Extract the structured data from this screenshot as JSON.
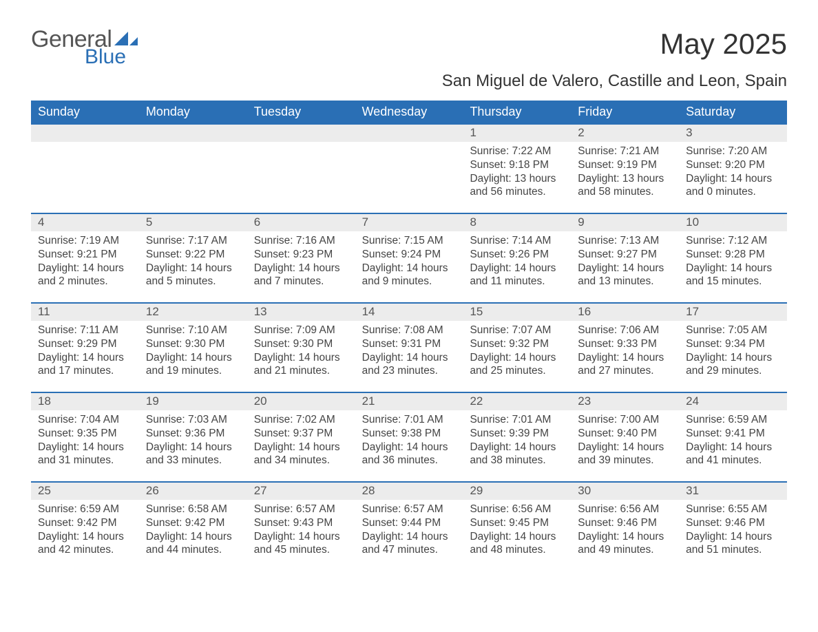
{
  "logo": {
    "text1": "General",
    "text2": "Blue"
  },
  "title": "May 2025",
  "subtitle": "San Miguel de Valero, Castille and Leon, Spain",
  "colors": {
    "header_bg": "#2a6fb5",
    "header_text": "#ffffff",
    "daynum_bg": "#ececec",
    "week_divider": "#2a6fb5",
    "body_text": "#444444",
    "page_bg": "#ffffff"
  },
  "weekdays": [
    "Sunday",
    "Monday",
    "Tuesday",
    "Wednesday",
    "Thursday",
    "Friday",
    "Saturday"
  ],
  "labels": {
    "sunrise": "Sunrise: ",
    "sunset": "Sunset: ",
    "daylight": "Daylight: "
  },
  "weeks": [
    [
      null,
      null,
      null,
      null,
      {
        "n": "1",
        "sunrise": "7:22 AM",
        "sunset": "9:18 PM",
        "daylight": "13 hours and 56 minutes."
      },
      {
        "n": "2",
        "sunrise": "7:21 AM",
        "sunset": "9:19 PM",
        "daylight": "13 hours and 58 minutes."
      },
      {
        "n": "3",
        "sunrise": "7:20 AM",
        "sunset": "9:20 PM",
        "daylight": "14 hours and 0 minutes."
      }
    ],
    [
      {
        "n": "4",
        "sunrise": "7:19 AM",
        "sunset": "9:21 PM",
        "daylight": "14 hours and 2 minutes."
      },
      {
        "n": "5",
        "sunrise": "7:17 AM",
        "sunset": "9:22 PM",
        "daylight": "14 hours and 5 minutes."
      },
      {
        "n": "6",
        "sunrise": "7:16 AM",
        "sunset": "9:23 PM",
        "daylight": "14 hours and 7 minutes."
      },
      {
        "n": "7",
        "sunrise": "7:15 AM",
        "sunset": "9:24 PM",
        "daylight": "14 hours and 9 minutes."
      },
      {
        "n": "8",
        "sunrise": "7:14 AM",
        "sunset": "9:26 PM",
        "daylight": "14 hours and 11 minutes."
      },
      {
        "n": "9",
        "sunrise": "7:13 AM",
        "sunset": "9:27 PM",
        "daylight": "14 hours and 13 minutes."
      },
      {
        "n": "10",
        "sunrise": "7:12 AM",
        "sunset": "9:28 PM",
        "daylight": "14 hours and 15 minutes."
      }
    ],
    [
      {
        "n": "11",
        "sunrise": "7:11 AM",
        "sunset": "9:29 PM",
        "daylight": "14 hours and 17 minutes."
      },
      {
        "n": "12",
        "sunrise": "7:10 AM",
        "sunset": "9:30 PM",
        "daylight": "14 hours and 19 minutes."
      },
      {
        "n": "13",
        "sunrise": "7:09 AM",
        "sunset": "9:30 PM",
        "daylight": "14 hours and 21 minutes."
      },
      {
        "n": "14",
        "sunrise": "7:08 AM",
        "sunset": "9:31 PM",
        "daylight": "14 hours and 23 minutes."
      },
      {
        "n": "15",
        "sunrise": "7:07 AM",
        "sunset": "9:32 PM",
        "daylight": "14 hours and 25 minutes."
      },
      {
        "n": "16",
        "sunrise": "7:06 AM",
        "sunset": "9:33 PM",
        "daylight": "14 hours and 27 minutes."
      },
      {
        "n": "17",
        "sunrise": "7:05 AM",
        "sunset": "9:34 PM",
        "daylight": "14 hours and 29 minutes."
      }
    ],
    [
      {
        "n": "18",
        "sunrise": "7:04 AM",
        "sunset": "9:35 PM",
        "daylight": "14 hours and 31 minutes."
      },
      {
        "n": "19",
        "sunrise": "7:03 AM",
        "sunset": "9:36 PM",
        "daylight": "14 hours and 33 minutes."
      },
      {
        "n": "20",
        "sunrise": "7:02 AM",
        "sunset": "9:37 PM",
        "daylight": "14 hours and 34 minutes."
      },
      {
        "n": "21",
        "sunrise": "7:01 AM",
        "sunset": "9:38 PM",
        "daylight": "14 hours and 36 minutes."
      },
      {
        "n": "22",
        "sunrise": "7:01 AM",
        "sunset": "9:39 PM",
        "daylight": "14 hours and 38 minutes."
      },
      {
        "n": "23",
        "sunrise": "7:00 AM",
        "sunset": "9:40 PM",
        "daylight": "14 hours and 39 minutes."
      },
      {
        "n": "24",
        "sunrise": "6:59 AM",
        "sunset": "9:41 PM",
        "daylight": "14 hours and 41 minutes."
      }
    ],
    [
      {
        "n": "25",
        "sunrise": "6:59 AM",
        "sunset": "9:42 PM",
        "daylight": "14 hours and 42 minutes."
      },
      {
        "n": "26",
        "sunrise": "6:58 AM",
        "sunset": "9:42 PM",
        "daylight": "14 hours and 44 minutes."
      },
      {
        "n": "27",
        "sunrise": "6:57 AM",
        "sunset": "9:43 PM",
        "daylight": "14 hours and 45 minutes."
      },
      {
        "n": "28",
        "sunrise": "6:57 AM",
        "sunset": "9:44 PM",
        "daylight": "14 hours and 47 minutes."
      },
      {
        "n": "29",
        "sunrise": "6:56 AM",
        "sunset": "9:45 PM",
        "daylight": "14 hours and 48 minutes."
      },
      {
        "n": "30",
        "sunrise": "6:56 AM",
        "sunset": "9:46 PM",
        "daylight": "14 hours and 49 minutes."
      },
      {
        "n": "31",
        "sunrise": "6:55 AM",
        "sunset": "9:46 PM",
        "daylight": "14 hours and 51 minutes."
      }
    ]
  ]
}
